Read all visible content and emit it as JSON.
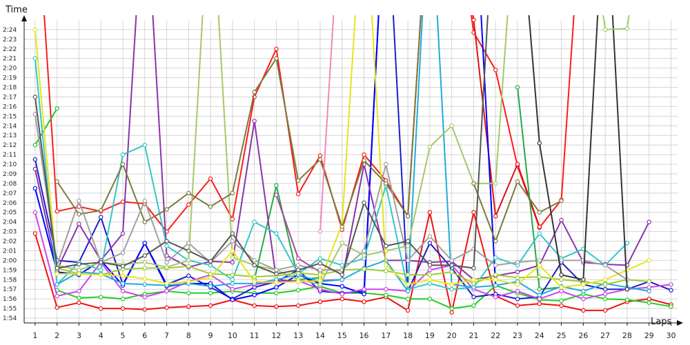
{
  "chart_data": {
    "type": "line",
    "xlabel": "Laps",
    "ylabel": "Time",
    "x": [
      1,
      2,
      3,
      4,
      5,
      6,
      7,
      8,
      9,
      10,
      11,
      12,
      13,
      14,
      15,
      16,
      17,
      18,
      19,
      20,
      21,
      22,
      23,
      24,
      25,
      26,
      27,
      28,
      29,
      30
    ],
    "xlim": [
      0.5,
      30.3
    ],
    "ylim_seconds": [
      113.5,
      145.5
    ],
    "grid": true,
    "legend": "none",
    "y_ticks": [
      {
        "label": "1:54",
        "seconds": 114
      },
      {
        "label": "1:55",
        "seconds": 115
      },
      {
        "label": "1:56",
        "seconds": 116
      },
      {
        "label": "1:57",
        "seconds": 117
      },
      {
        "label": "1:58",
        "seconds": 118
      },
      {
        "label": "1:59",
        "seconds": 119
      },
      {
        "label": "2:00",
        "seconds": 120
      },
      {
        "label": "2:01",
        "seconds": 121
      },
      {
        "label": "2:02",
        "seconds": 122
      },
      {
        "label": "2:03",
        "seconds": 123
      },
      {
        "label": "2:04",
        "seconds": 124
      },
      {
        "label": "2:05",
        "seconds": 125
      },
      {
        "label": "2:06",
        "seconds": 126
      },
      {
        "label": "2:07",
        "seconds": 127
      },
      {
        "label": "2:08",
        "seconds": 128
      },
      {
        "label": "2:09",
        "seconds": 129
      },
      {
        "label": "2:10",
        "seconds": 130
      },
      {
        "label": "2:11",
        "seconds": 131
      },
      {
        "label": "2:12",
        "seconds": 132
      },
      {
        "label": "2:13",
        "seconds": 133
      },
      {
        "label": "2:14",
        "seconds": 134
      },
      {
        "label": "2:15",
        "seconds": 135
      },
      {
        "label": "2:16",
        "seconds": 136
      },
      {
        "label": "2:17",
        "seconds": 137
      },
      {
        "label": "2:18",
        "seconds": 138
      },
      {
        "label": "2:19",
        "seconds": 139
      },
      {
        "label": "2:20",
        "seconds": 140
      },
      {
        "label": "2:21",
        "seconds": 141
      },
      {
        "label": "2:22",
        "seconds": 142
      },
      {
        "label": "2:23",
        "seconds": 143
      },
      {
        "label": "2:24",
        "seconds": 144
      }
    ],
    "y_units": "seconds per lap (tick labels show m:ss)",
    "series": [
      {
        "color": "#ee1111",
        "values": [
          122.8,
          115.1,
          115.6,
          115.0,
          115.0,
          114.9,
          115.1,
          115.2,
          115.3,
          115.9,
          115.3,
          115.2,
          115.3,
          115.7,
          116.0,
          115.7,
          116.2,
          114.8,
          125.0,
          114.6,
          125.0,
          116.3,
          115.3,
          115.5,
          115.3,
          114.8,
          114.8,
          115.7,
          116.0,
          115.4
        ]
      },
      {
        "color": "#ff1a1a",
        "values": [
          160,
          125.1,
          125.6,
          125.1,
          126.1,
          125.9,
          123.0,
          125.8,
          128.5,
          124.3,
          137.0,
          142.0,
          126.9,
          130.9,
          123.2,
          131.0,
          128.3,
          124.6,
          160,
          160,
          143.7,
          139.8,
          129.8,
          123.4,
          126.3,
          160,
          160,
          160,
          160,
          160
        ]
      },
      {
        "color": "#dd1111",
        "values": [
          null,
          null,
          null,
          null,
          null,
          null,
          null,
          null,
          null,
          null,
          null,
          null,
          null,
          null,
          null,
          null,
          null,
          null,
          null,
          160,
          145.0,
          124.6,
          130.0,
          123.5,
          null,
          null,
          null,
          null,
          null,
          null
        ]
      },
      {
        "color": "#22cc22",
        "values": [
          null,
          116.9,
          116.1,
          116.2,
          116.0,
          116.5,
          116.8,
          116.6,
          116.6,
          116.8,
          116.6,
          116.6,
          116.9,
          117.3,
          116.6,
          116.6,
          116.4,
          116.0,
          116.0,
          115.0,
          115.3,
          117.4,
          116.6,
          115.9,
          115.8,
          116.5,
          116.0,
          115.9,
          115.6,
          115.2
        ]
      },
      {
        "color": "#33bb33",
        "values": [
          132.0,
          135.8,
          null,
          null,
          null,
          null,
          null,
          null,
          null,
          null,
          null,
          null,
          null,
          null,
          null,
          null,
          null,
          null,
          null,
          null,
          null,
          null,
          null,
          null,
          null,
          null,
          null,
          null,
          null,
          null
        ]
      },
      {
        "color": "#22aa44",
        "values": [
          null,
          null,
          null,
          null,
          null,
          null,
          null,
          null,
          null,
          null,
          118.0,
          127.8,
          118.0,
          118.2,
          null,
          null,
          null,
          null,
          null,
          null,
          null,
          null,
          138.0,
          117.0,
          117.2,
          null,
          null,
          null,
          null,
          null
        ]
      },
      {
        "color": "#1c1cc8",
        "values": [
          130.5,
          120.0,
          119.8,
          124.5,
          117.5,
          121.8,
          117.5,
          118.4,
          117.2,
          116.0,
          117.2,
          117.8,
          119.0,
          116.8,
          116.6,
          116.8,
          160,
          116.8,
          121.8,
          119.2,
          116.2,
          116.5,
          116.0,
          116.2,
          119.8,
          117.5,
          117.0,
          117.0,
          117.8,
          116.9
        ]
      },
      {
        "color": "#0000ff",
        "values": [
          127.5,
          118.8,
          118.5,
          120.0,
          117.4,
          121.8,
          117.3,
          117.6,
          117.6,
          115.9,
          116.4,
          117.2,
          118.5,
          117.6,
          117.3,
          116.5,
          160,
          null,
          null,
          null,
          160,
          117.4,
          null,
          null,
          null,
          null,
          null,
          null,
          null,
          null
        ]
      },
      {
        "color": "#cc44ee",
        "values": [
          125.0,
          116.3,
          116.8,
          119.8,
          116.8,
          116.2,
          116.8,
          117.8,
          118.5,
          117.0,
          117.5,
          117.8,
          117.9,
          117.0,
          116.5,
          117.0,
          117.0,
          116.8,
          119.0,
          119.5,
          117.0,
          116.2,
          116.8,
          116.0,
          116.8,
          116.0,
          116.5,
          117.0,
          117.2,
          117.5
        ]
      },
      {
        "color": "#8833aa",
        "values": [
          129.5,
          119.0,
          123.8,
          120.0,
          122.8,
          160,
          120.5,
          119.3,
          119.9,
          119.8,
          134.5,
          118.0,
          117.8,
          117.9,
          118.0,
          130.0,
          120.0,
          120.0,
          119.8,
          119.9,
          118.0,
          118.4,
          118.8,
          119.5,
          124.2,
          119.8,
          119.6,
          119.5,
          124.0,
          null
        ]
      },
      {
        "color": "#aa4499",
        "values": [
          null,
          null,
          null,
          null,
          null,
          null,
          null,
          null,
          null,
          null,
          null,
          126.8,
          120.2,
          118.8,
          null,
          null,
          null,
          null,
          null,
          null,
          null,
          null,
          null,
          null,
          null,
          null,
          null,
          null,
          null,
          null
        ]
      },
      {
        "color": "#33c6c6",
        "values": [
          141.0,
          117.5,
          119.8,
          119.0,
          131.0,
          132.0,
          121.5,
          120.0,
          119.5,
          118.0,
          124.0,
          122.8,
          118.6,
          120.2,
          119.5,
          120.2,
          127.8,
          117.0,
          117.6,
          117.0,
          117.2,
          120.3,
          119.5,
          122.8,
          120.2,
          121.2,
          119.5,
          121.8,
          null,
          null
        ]
      },
      {
        "color": "#22aadd",
        "values": [
          null,
          117.5,
          118.8,
          118.6,
          117.6,
          117.5,
          117.4,
          117.6,
          117.3,
          117.6,
          117.6,
          118.0,
          118.5,
          117.8,
          118.0,
          119.2,
          120.0,
          116.8,
          160,
          117.5,
          117.2,
          117.4,
          117.8,
          116.4,
          117.3,
          116.8,
          117.6,
          117.2,
          116.8,
          null
        ]
      },
      {
        "color": "#9acd32",
        "values": [
          null,
          119.2,
          118.6,
          118.5,
          119.1,
          119.2,
          119.2,
          119.4,
          118.6,
          118.5,
          118.3,
          118.4,
          118.7,
          118.5,
          119.0,
          119.1,
          118.9,
          118.5,
          118.5,
          118.8,
          117.6,
          118.5,
          118.2,
          118.3,
          118.0,
          117.8,
          117.5,
          118.0,
          117.8,
          null
        ]
      },
      {
        "color": "#a5c866",
        "values": [
          null,
          119.5,
          119.0,
          119.8,
          119.6,
          119.8,
          119.3,
          120.0,
          160,
          120.3,
          119.5,
          119.0,
          118.0,
          117.5,
          121.8,
          120.5,
          121.0,
          121.5,
          131.8,
          134.0,
          128.0,
          128.0,
          160,
          null,
          null,
          null,
          null,
          null,
          null,
          null
        ]
      },
      {
        "color": "#e5e51a",
        "values": [
          144.0,
          118.6,
          118.6,
          118.5,
          118.4,
          118.1,
          117.6,
          117.8,
          118.2,
          121.0,
          117.8,
          117.7,
          117.8,
          117.9,
          123.8,
          160,
          119.5,
          117.5,
          118.0,
          117.5,
          118.0,
          118.0,
          117.5,
          119.5,
          117.2,
          117.5,
          118.0,
          119.0,
          120.0,
          null
        ]
      },
      {
        "color": "#7a7a3a",
        "values": [
          null,
          128.2,
          124.8,
          125.2,
          130.0,
          124.0,
          125.3,
          127.0,
          125.6,
          127.0,
          137.5,
          141.0,
          128.3,
          130.5,
          123.5,
          130.4,
          128.0,
          124.6,
          160,
          null,
          128.0,
          122.0,
          128.2,
          125.0,
          126.2,
          null,
          null,
          null,
          null,
          null
        ]
      },
      {
        "color": "#a0a0a0",
        "values": [
          135.2,
          119.5,
          126.2,
          119.8,
          120.8,
          126.2,
          119.8,
          121.8,
          119.8,
          122.0,
          120.0,
          119.0,
          119.5,
          119.0,
          119.0,
          121.0,
          130.0,
          120.0,
          122.5,
          120.0,
          121.2,
          119.5,
          119.8,
          120.0,
          120.0,
          120.0,
          119.5,
          118.0,
          null,
          null
        ]
      },
      {
        "color": "#555555",
        "values": [
          137.0,
          119.2,
          119.6,
          119.8,
          119.4,
          120.5,
          122.0,
          121.0,
          119.9,
          122.8,
          119.5,
          118.6,
          119.0,
          119.7,
          118.5,
          126.0,
          121.5,
          122.0,
          119.5,
          119.5,
          119.2,
          160,
          null,
          null,
          null,
          null,
          null,
          null,
          null,
          null
        ]
      },
      {
        "color": "#333333",
        "values": [
          null,
          null,
          null,
          null,
          null,
          null,
          null,
          null,
          null,
          null,
          null,
          null,
          null,
          null,
          null,
          null,
          null,
          null,
          null,
          null,
          null,
          null,
          160,
          132.2,
          118.5,
          118.0,
          160,
          117.0,
          null,
          null
        ]
      },
      {
        "color": "#ee88bb",
        "values": [
          null,
          null,
          null,
          null,
          null,
          null,
          null,
          null,
          null,
          null,
          null,
          null,
          null,
          123.0,
          160,
          null,
          null,
          null,
          null,
          null,
          null,
          null,
          null,
          null,
          null,
          null,
          null,
          null,
          null,
          null
        ]
      },
      {
        "color": "#9bd36b",
        "values": [
          null,
          null,
          null,
          null,
          null,
          null,
          null,
          null,
          null,
          null,
          null,
          null,
          null,
          null,
          null,
          null,
          null,
          null,
          null,
          null,
          null,
          null,
          null,
          null,
          null,
          160,
          144.0,
          144.1,
          160,
          null
        ]
      }
    ]
  }
}
